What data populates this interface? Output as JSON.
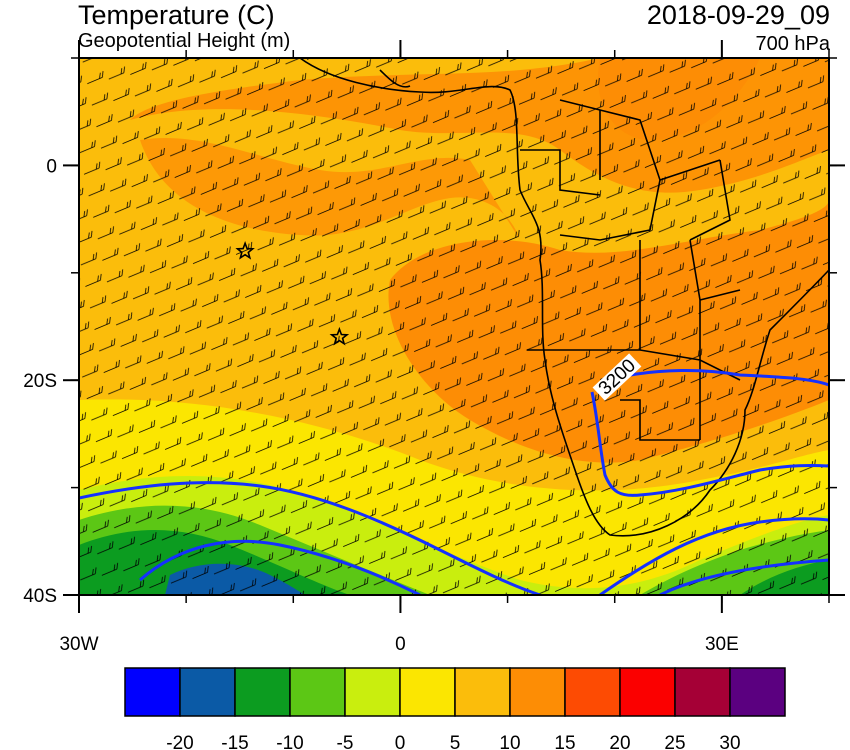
{
  "header": {
    "title": "Temperature (C)",
    "subtitle": "Geopotential Height (m)",
    "datetime": "2018-09-29_09",
    "level": "700 hPa"
  },
  "map": {
    "lon_range": [
      -30,
      40
    ],
    "lat_range": [
      -40,
      10
    ],
    "lon_ticks": [
      {
        "value": -30,
        "label": "30W"
      },
      {
        "value": 0,
        "label": "0"
      },
      {
        "value": 30,
        "label": "30E"
      }
    ],
    "lat_ticks": [
      {
        "value": 0,
        "label": "0"
      },
      {
        "value": -20,
        "label": "20S"
      },
      {
        "value": -40,
        "label": "40S"
      }
    ],
    "contour_label": "3200",
    "markers": [
      {
        "type": "star",
        "lon": -14.5,
        "lat": -8
      },
      {
        "type": "star",
        "lon": -5.7,
        "lat": -16
      }
    ]
  },
  "colorbar": {
    "colors": [
      "#0000ff",
      "#0b5aa6",
      "#0c9c20",
      "#5cc715",
      "#c9ee0e",
      "#fbe601",
      "#fbbd0b",
      "#fd8d05",
      "#fd4b03",
      "#fb0000",
      "#a50036",
      "#5b0080"
    ],
    "labels": [
      "-20",
      "-15",
      "-10",
      "-5",
      "0",
      "5",
      "10",
      "15",
      "20",
      "25",
      "30"
    ]
  }
}
